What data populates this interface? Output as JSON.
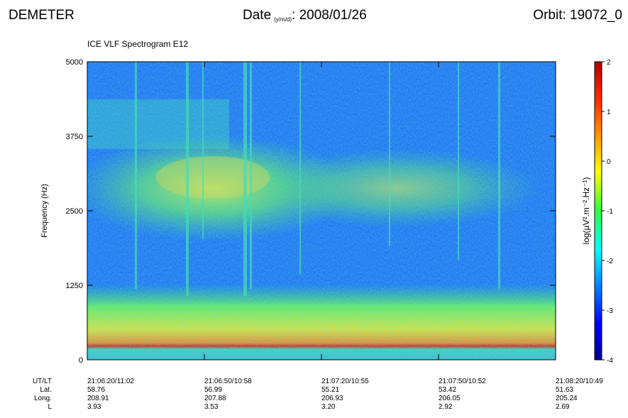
{
  "header": {
    "instrument": "DEMETER",
    "date_label": "Date",
    "date_unit": "(y/m/d)",
    "date_value": ": 2008/01/26",
    "orbit": "Orbit: 19072_0"
  },
  "chart_data": {
    "type": "spectrogram",
    "title": "ICE VLF Spectrogram E12",
    "ylabel": "Frequency (Hz)",
    "ylim": [
      0,
      5000
    ],
    "yticks": [
      0,
      1250,
      2500,
      3750,
      5000
    ],
    "colorbar": {
      "label": "log(µV².m⁻².Hz⁻¹)",
      "lim": [
        -4,
        2
      ],
      "ticks": [
        -4,
        -3,
        -2,
        -1,
        0,
        1,
        2
      ],
      "colormap": "jet"
    },
    "x_rows": {
      "labels": [
        "UT/LT",
        "Lat.",
        "Long.",
        "L"
      ],
      "columns": [
        [
          "21:06:20/11:02",
          "58.76",
          "208.91",
          "3.93"
        ],
        [
          "21:06:50/10:58",
          "56.99",
          "207.88",
          "3.53"
        ],
        [
          "21:07:20/10:55",
          "55.21",
          "206.93",
          "3.20"
        ],
        [
          "21:07:50/10:52",
          "53.42",
          "206.05",
          "2.92"
        ],
        [
          "21:08:20/10:49",
          "51.63",
          "205.24",
          "2.69"
        ]
      ]
    }
  }
}
